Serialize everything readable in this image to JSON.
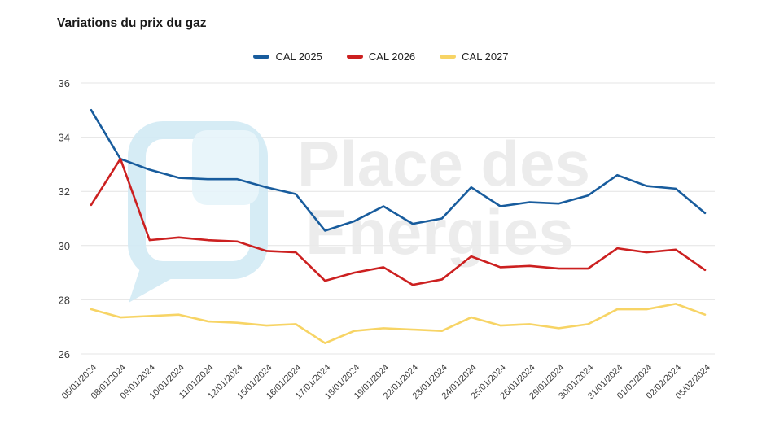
{
  "title": "Variations du prix du gaz",
  "watermark": {
    "line1": "Place des",
    "line2": "Energies"
  },
  "chart_data": {
    "type": "line",
    "title": "Variations du prix du gaz",
    "xlabel": "",
    "ylabel": "",
    "ylim": [
      26,
      36
    ],
    "yticks": [
      26,
      28,
      30,
      32,
      34,
      36
    ],
    "grid": "horizontal",
    "legend_position": "top-center",
    "categories": [
      "05/01/2024",
      "08/01/2024",
      "09/01/2024",
      "10/01/2024",
      "11/01/2024",
      "12/01/2024",
      "15/01/2024",
      "16/01/2024",
      "17/01/2024",
      "18/01/2024",
      "19/01/2024",
      "22/01/2024",
      "23/01/2024",
      "24/01/2024",
      "25/01/2024",
      "26/01/2024",
      "29/01/2024",
      "30/01/2024",
      "31/01/2024",
      "01/02/2024",
      "02/02/2024",
      "05/02/2024"
    ],
    "series": [
      {
        "name": "CAL 2025",
        "color": "#185c9d",
        "values": [
          35.0,
          33.2,
          32.8,
          32.5,
          32.45,
          32.45,
          32.15,
          31.9,
          30.55,
          30.9,
          31.45,
          30.8,
          31.0,
          32.15,
          31.45,
          31.6,
          31.55,
          31.85,
          32.6,
          32.2,
          32.1,
          31.2
        ]
      },
      {
        "name": "CAL 2026",
        "color": "#cc2020",
        "values": [
          31.5,
          33.2,
          30.2,
          30.3,
          30.2,
          30.15,
          29.8,
          29.75,
          28.7,
          29.0,
          29.2,
          28.55,
          28.75,
          29.6,
          29.2,
          29.25,
          29.15,
          29.15,
          29.9,
          29.75,
          29.85,
          29.1
        ]
      },
      {
        "name": "CAL 2027",
        "color": "#f7d465",
        "values": [
          27.65,
          27.35,
          27.4,
          27.45,
          27.2,
          27.15,
          27.05,
          27.1,
          26.4,
          26.85,
          26.95,
          26.9,
          26.85,
          27.35,
          27.05,
          27.1,
          26.95,
          27.1,
          27.65,
          27.65,
          27.85,
          27.45
        ]
      }
    ],
    "colors": {
      "grid": "#e4e4e4",
      "axis_text": "#3c3c3c",
      "watermark_bubble": "#d2eaf5",
      "watermark_bubble_fill": "#e6f4fa",
      "watermark_text": "#ebebeb"
    }
  }
}
